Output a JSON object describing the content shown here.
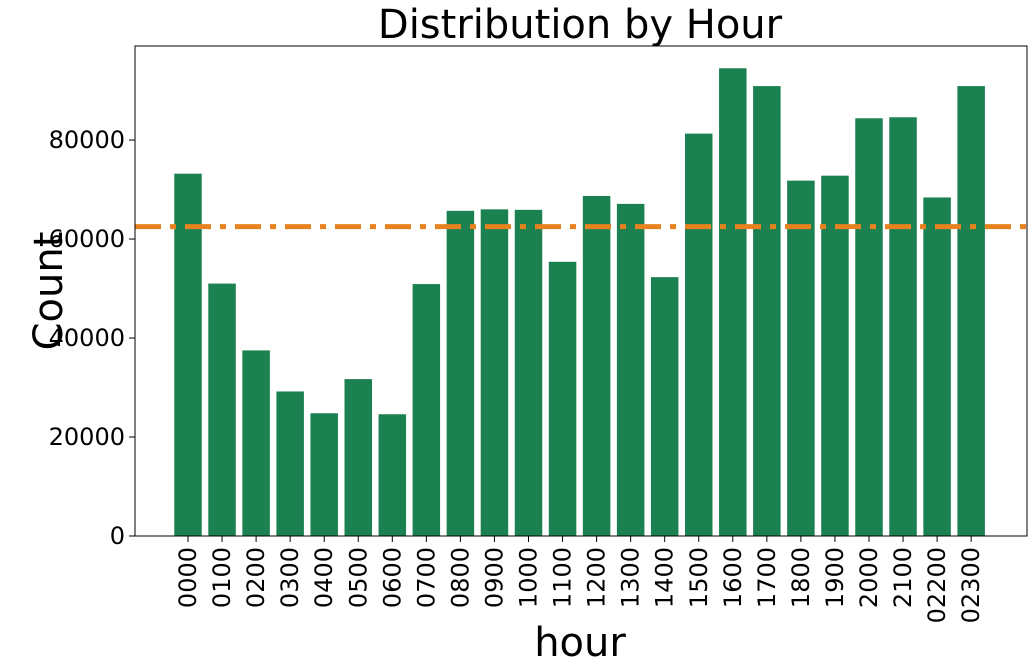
{
  "chart_data": {
    "type": "bar",
    "title": "Distribution by Hour",
    "xlabel": "hour",
    "ylabel": "Count",
    "categories": [
      "0000",
      "0100",
      "0200",
      "0300",
      "0400",
      "0500",
      "0600",
      "0700",
      "0800",
      "0900",
      "1000",
      "1100",
      "1200",
      "1300",
      "1400",
      "1500",
      "1600",
      "1700",
      "1800",
      "1900",
      "2000",
      "2100",
      "02200",
      "02300"
    ],
    "values": [
      73200,
      51000,
      37500,
      29200,
      24800,
      31700,
      24600,
      50900,
      65700,
      66000,
      65900,
      55400,
      68700,
      67100,
      52300,
      81300,
      94500,
      90900,
      71800,
      72800,
      84400,
      84600,
      68400,
      90900
    ],
    "ylim": [
      0,
      99000
    ],
    "yticks": [
      0,
      20000,
      40000,
      60000,
      80000
    ],
    "reference_line": {
      "value": 62500,
      "style": "dash-dot",
      "color": "#e8821e"
    },
    "bar_color": "#1b8150",
    "grid": false,
    "legend": "none"
  }
}
